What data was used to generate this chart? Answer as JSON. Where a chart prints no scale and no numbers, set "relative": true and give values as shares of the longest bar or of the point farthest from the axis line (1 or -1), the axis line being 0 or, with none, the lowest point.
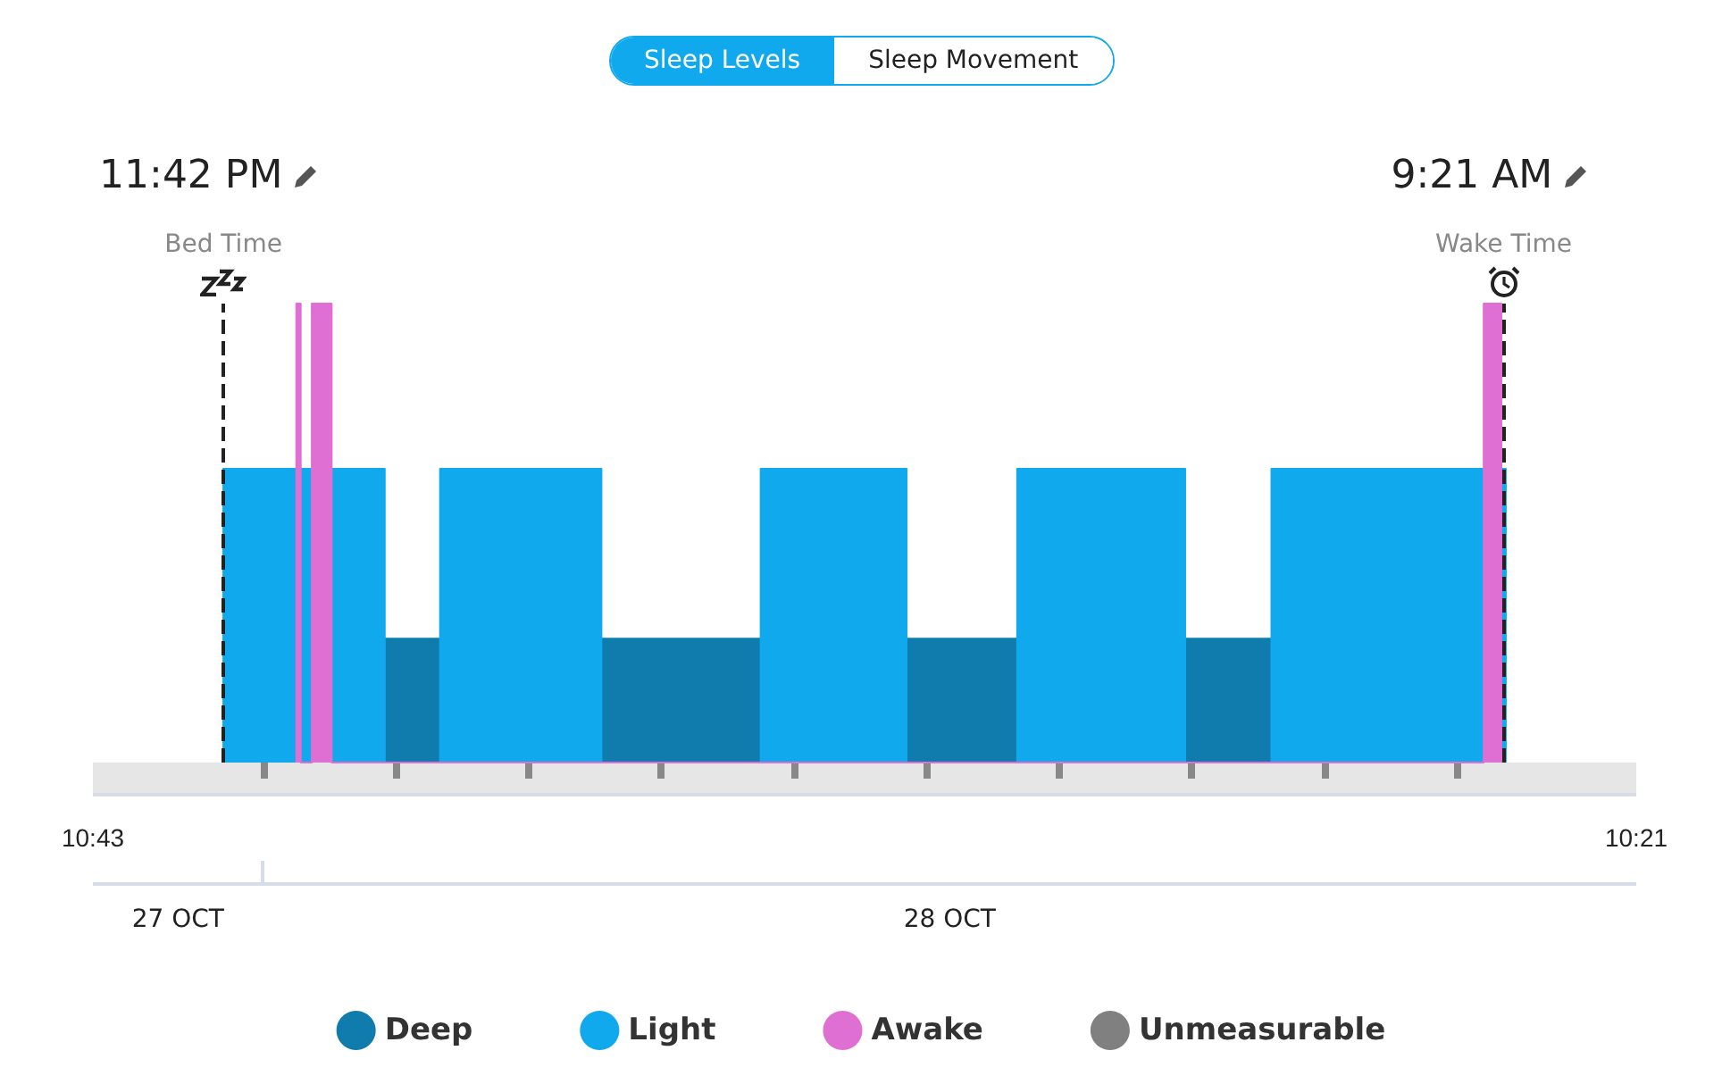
{
  "chart_data": {
    "type": "area",
    "relative": true,
    "legend": "bottom",
    "xlim": [
      "--10-27T22:43",
      "--10-28T10:21"
    ],
    "xticks": [
      {
        "value": "--10-27T22:43",
        "label": "10:43"
      },
      {
        "value": "--10-28T00:00",
        "label": null
      },
      {
        "value": "--10-28T01:00",
        "label": null
      },
      {
        "value": "--10-28T02:00",
        "label": null
      },
      {
        "value": "--10-28T03:00",
        "label": null
      },
      {
        "value": "--10-28T04:00",
        "label": null
      },
      {
        "value": "--10-28T05:00",
        "label": null
      },
      {
        "value": "--10-28T06:00",
        "label": null
      },
      {
        "value": "--10-28T07:00",
        "label": null
      },
      {
        "value": "--10-28T08:00",
        "label": null
      },
      {
        "value": "--10-28T09:00",
        "label": null
      },
      {
        "value": "--10-28T10:21",
        "label": "10:21"
      }
    ],
    "series": [
      {
        "name": "Deep",
        "color": "#0f7cad",
        "x": [
          "--10-28T00:55",
          "--10-28T00:55",
          "--10-28T01:20",
          "--10-28T01:20",
          "--10-28T02:33",
          "--10-28T02:33",
          "--10-28T03:45",
          "--10-28T03:45",
          "--10-28T04:51",
          "--10-28T04:51",
          "--10-28T05:41",
          "--10-28T05:41",
          "--10-28T06:57",
          "--10-28T06:57",
          "--10-28T07:36",
          "--10-28T07:36"
        ],
        "values": [
          0,
          0.27,
          0.27,
          0,
          0,
          0.27,
          0.27,
          0,
          0,
          0.27,
          0.27,
          0,
          0,
          0.27,
          0.27,
          0
        ]
      },
      {
        "name": "Light",
        "color": "#11a9ed",
        "x": [
          "--10-27T23:42",
          "--10-27T23:42",
          "--10-28T00:55",
          "--10-28T00:55",
          "--10-28T01:20",
          "--10-28T01:20",
          "--10-28T02:33",
          "--10-28T02:33",
          "--10-28T03:45",
          "--10-28T03:45",
          "--10-28T04:51",
          "--10-28T04:51",
          "--10-28T05:41",
          "--10-28T05:41",
          "--10-28T06:57",
          "--10-28T06:57",
          "--10-28T07:36",
          "--10-28T07:36",
          "--10-28T09:22",
          "--10-28T09:22"
        ],
        "values": [
          0,
          0.64,
          0.64,
          0,
          0,
          0.64,
          0.64,
          0,
          0,
          0.64,
          0.64,
          0,
          0,
          0.64,
          0.64,
          0,
          0,
          0.64,
          0.64,
          0
        ]
      },
      {
        "name": "Awake",
        "color": "#e06fd3",
        "x": [
          "--10-28T00:15",
          "--10-28T00:15",
          "--10-28T00:17",
          "--10-28T00:17",
          "--10-28T00:22",
          "--10-28T00:22",
          "--10-28T00:31",
          "--10-28T00:31",
          "--10-28T09:12",
          "--10-28T09:12",
          "--10-28T09:20",
          "--10-28T09:20"
        ],
        "values": [
          0,
          1,
          1,
          0,
          0,
          1,
          1,
          0,
          0,
          1,
          1,
          0
        ]
      },
      {
        "name": "Unmeasurable",
        "color": "#808080"
      }
    ],
    "ref_lines": [
      {
        "axis": "x",
        "value": "--10-27T23:42",
        "label": "Bed Time",
        "color": "#222222",
        "line_style": "dashed"
      },
      {
        "axis": "x",
        "value": "--10-28T09:21",
        "label": "Wake Time",
        "color": "#222222",
        "line_style": "dashed"
      }
    ],
    "annotations": [
      "Sleep Levels",
      "Sleep Movement",
      "11:42 PM",
      "9:21 AM",
      "27 OCT",
      "28 OCT"
    ]
  }
}
